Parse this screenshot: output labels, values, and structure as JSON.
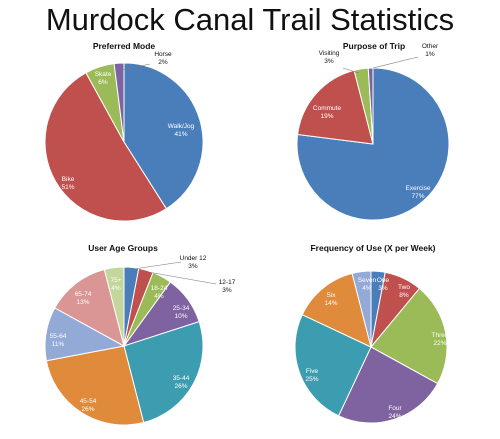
{
  "title": "Murdock Canal Trail Statistics",
  "colors": {
    "blue": "#4a7ebb",
    "red": "#c0504d",
    "green": "#9bbb59",
    "purple": "#7f62a0",
    "teal": "#3c9db0",
    "orange": "#e08a3b",
    "lightblue": "#93a9d6",
    "pink": "#d99694",
    "lightgreen": "#c3d69b"
  },
  "chart_data": [
    {
      "type": "pie",
      "title": "Preferred Mode",
      "categories": [
        "Walk/Jog",
        "Bike",
        "Skate",
        "Horse"
      ],
      "values": [
        41,
        51,
        6,
        2
      ],
      "value_labels": [
        "41%",
        "51%",
        "6%",
        "2%"
      ],
      "colors": [
        "#4a7ebb",
        "#c0504d",
        "#9bbb59",
        "#7f62a0"
      ]
    },
    {
      "type": "pie",
      "title": "Purpose of Trip",
      "categories": [
        "Exercise",
        "Commute",
        "Visiting",
        "Other"
      ],
      "values": [
        77,
        19,
        3,
        1
      ],
      "value_labels": [
        "77%",
        "19%",
        "3%",
        "1%"
      ],
      "colors": [
        "#4a7ebb",
        "#c0504d",
        "#9bbb59",
        "#7f62a0"
      ]
    },
    {
      "type": "pie",
      "title": "User Age Groups",
      "categories": [
        "Under 12",
        "12-17",
        "18-24",
        "25-34",
        "35-44",
        "45-54",
        "55-64",
        "65-74",
        "75+"
      ],
      "values": [
        3,
        3,
        4,
        10,
        26,
        26,
        11,
        13,
        4
      ],
      "value_labels": [
        "3%",
        "3%",
        "4%",
        "10%",
        "26%",
        "26%",
        "11%",
        "13%",
        "4%"
      ],
      "colors": [
        "#4a7ebb",
        "#c0504d",
        "#9bbb59",
        "#7f62a0",
        "#3c9db0",
        "#e08a3b",
        "#93a9d6",
        "#d99694",
        "#c3d69b"
      ]
    },
    {
      "type": "pie",
      "title": "Frequency of Use (X per Week)",
      "categories": [
        "One",
        "Two",
        "Three",
        "Four",
        "Five",
        "Six",
        "Seven"
      ],
      "values": [
        3,
        8,
        22,
        24,
        25,
        14,
        4
      ],
      "value_labels": [
        "3%",
        "8%",
        "22%",
        "24%",
        "25%",
        "14%",
        "4%"
      ],
      "colors": [
        "#4a7ebb",
        "#c0504d",
        "#9bbb59",
        "#7f62a0",
        "#3c9db0",
        "#e08a3b",
        "#93a9d6"
      ]
    }
  ]
}
